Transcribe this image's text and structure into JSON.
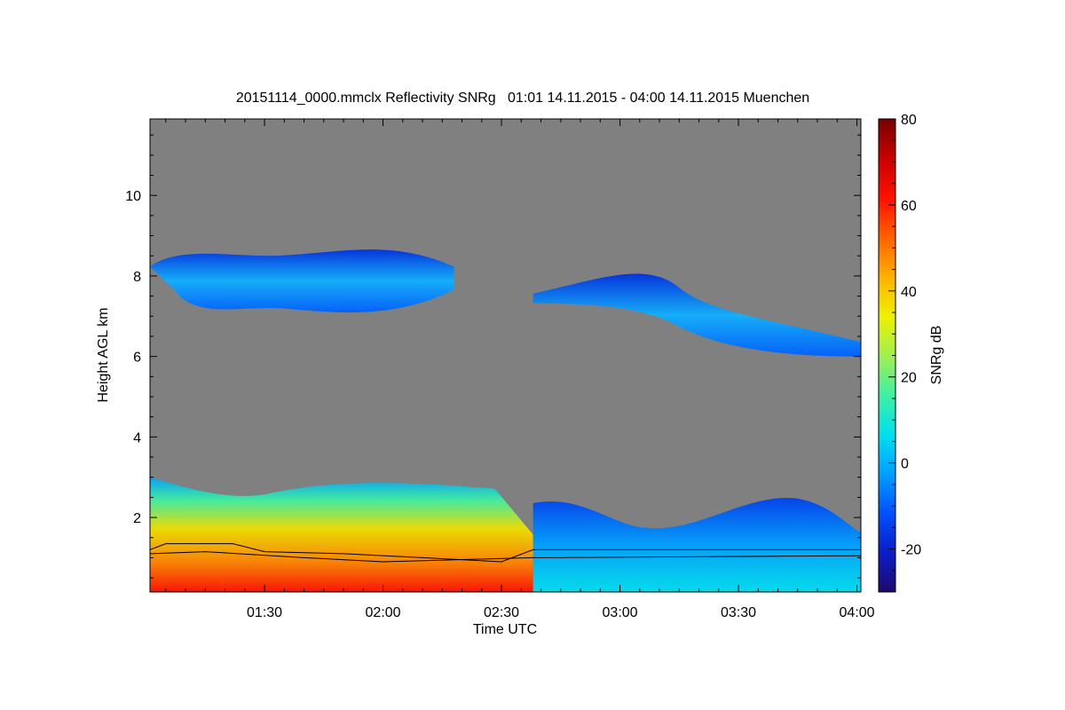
{
  "chart_data": {
    "type": "heatmap",
    "title": "20151114_0000.mmclx Reflectivity SNRg   01:01 14.11.2015 - 04:00 14.11.2015 Muenchen",
    "xlabel": "Time UTC",
    "ylabel": "Height AGL km",
    "colorbar_label": "SNRg dB",
    "x_range_utc": [
      "01:01",
      "04:00"
    ],
    "x_ticks": [
      "01:30",
      "02:00",
      "02:30",
      "03:00",
      "03:30",
      "04:00"
    ],
    "x_tick_minutes": [
      90,
      120,
      150,
      180,
      210,
      240
    ],
    "x_min_minutes": 61,
    "x_max_minutes": 241,
    "ylim": [
      0.15,
      11.9
    ],
    "y_ticks": [
      2,
      4,
      6,
      8,
      10
    ],
    "y_tick_labels": [
      "2",
      "4",
      "6",
      "8",
      "10"
    ],
    "colorbar_range": [
      -30,
      80
    ],
    "colorbar_ticks": [
      -20,
      0,
      20,
      40,
      60,
      80
    ],
    "colorbar_tick_labels": [
      "-20",
      "0",
      "20",
      "40",
      "60",
      "80"
    ],
    "no_signal_color": "#808080",
    "colormap": [
      "#1e0a6e",
      "#0a1ec8",
      "#0050ff",
      "#00a0ff",
      "#00e0f0",
      "#40f0a0",
      "#a0f050",
      "#f0f000",
      "#ffb000",
      "#ff6000",
      "#ff1000",
      "#c80000",
      "#780000"
    ],
    "features": [
      {
        "name": "upper cirrus band A",
        "t_start": 61,
        "t_end": 138,
        "h_bottom": 6.9,
        "h_top": 8.8,
        "snr_db": 5
      },
      {
        "name": "upper cirrus band B",
        "t_start": 158,
        "t_end": 241,
        "h_bottom": 6.0,
        "h_top": 8.4,
        "snr_db": 3
      },
      {
        "name": "boundary layer echo",
        "t_start": 61,
        "t_end": 158,
        "h_bottom": 0.15,
        "h_top": 3.0,
        "snr_db": 45
      },
      {
        "name": "low broken echo",
        "t_start": 158,
        "t_end": 241,
        "h_bottom": 0.15,
        "h_top": 2.6,
        "snr_db": 5
      }
    ],
    "overlay_lines": [
      {
        "name": "cloud base line 1",
        "x": [
          61,
          65,
          82,
          90,
          110,
          130,
          150,
          158,
          241
        ],
        "y": [
          1.2,
          1.35,
          1.35,
          1.15,
          1.1,
          1.0,
          0.9,
          1.2,
          1.2
        ]
      },
      {
        "name": "cloud base line 2",
        "x": [
          61,
          75,
          100,
          120,
          158,
          241
        ],
        "y": [
          1.1,
          1.15,
          1.0,
          0.9,
          1.0,
          1.05
        ]
      }
    ]
  }
}
